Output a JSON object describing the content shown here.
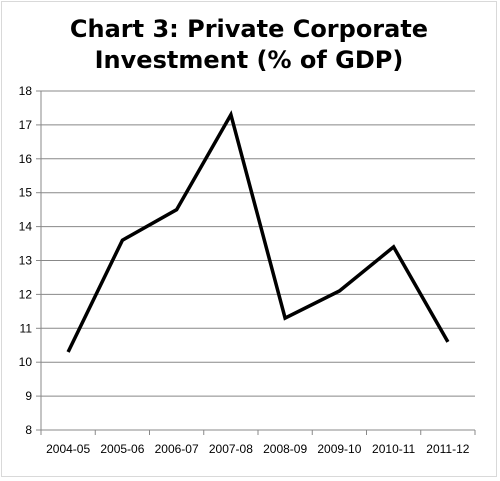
{
  "chart_data": {
    "type": "line",
    "title_lines": [
      "Chart 3: Private Corporate",
      "Investment (% of GDP)"
    ],
    "categories": [
      "2004-05",
      "2005-06",
      "2006-07",
      "2007-08",
      "2008-09",
      "2009-10",
      "2010-11",
      "2011-12"
    ],
    "series": [
      {
        "values": [
          10.3,
          13.6,
          14.5,
          17.3,
          11.3,
          12.1,
          13.4,
          10.6
        ]
      }
    ],
    "ylim": [
      8,
      18
    ],
    "yticks": [
      8,
      9,
      10,
      11,
      12,
      13,
      14,
      15,
      16,
      17,
      18
    ],
    "grid": true,
    "legend": "none",
    "line_color": "#000000",
    "grid_color": "#888888"
  }
}
